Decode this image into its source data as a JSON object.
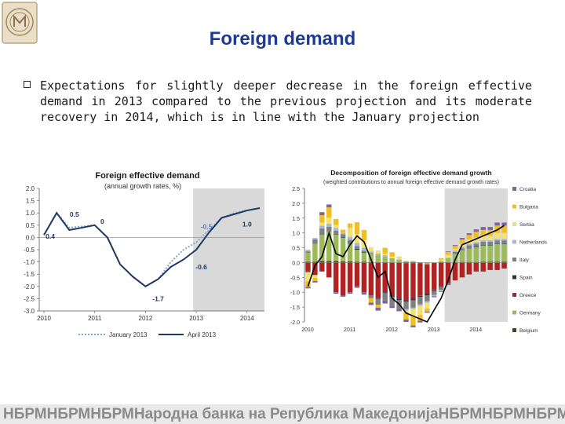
{
  "slide": {
    "title": "Foreign demand",
    "bullet": "Expectations for slightly deeper decrease in the foreign effective demand in 2013 compared to the previous projection and its moderate recovery in 2014, which is in line with the January projection",
    "footer": "НБРМНБРМНБРМНародна банка на Република МакедонијаНБРМНБРМНБРМ"
  },
  "colors": {
    "title": "#1f3a93",
    "projection_shade": "#d9d9d9",
    "january_line": "#7fa7d6",
    "april_line": "#1f3864",
    "line_total": "#000000"
  },
  "chart_data": [
    {
      "type": "line",
      "title": "Foreign effective demand",
      "subtitle": "(annual growth rates, %)",
      "x_tick_labels": [
        "2010",
        "2011",
        "2012",
        "2013",
        "2014"
      ],
      "ylim": [
        -3.0,
        2.0
      ],
      "y_ticks": [
        "2.0",
        "1.5",
        "1.0",
        "0.5",
        "0.0",
        "-0.5",
        "-1.0",
        "-1.5",
        "-2.0",
        "-2.5",
        "-3.0"
      ],
      "projection_start_index": 12,
      "series": [
        {
          "name": "January 2013",
          "style": "dotted",
          "values": [
            0.1,
            1.0,
            0.4,
            0.45,
            0.5,
            0.0,
            -1.1,
            -1.6,
            -2.0,
            -1.7,
            -1.0,
            -0.5,
            -0.2,
            0.3,
            0.8,
            1.0,
            1.1,
            1.2
          ]
        },
        {
          "name": "April 2013",
          "style": "solid",
          "values": [
            0.1,
            1.0,
            0.3,
            0.4,
            0.5,
            0.0,
            -1.1,
            -1.6,
            -2.0,
            -1.7,
            -1.2,
            -0.9,
            -0.5,
            0.2,
            0.8,
            0.95,
            1.1,
            1.2
          ]
        }
      ],
      "annotations": [
        "0.4",
        "0.5",
        "0",
        "-0.5",
        "1.0",
        "-0.6",
        "-1.7"
      ],
      "grid": false,
      "legend": "bottom"
    },
    {
      "type": "bar",
      "stacked": true,
      "title": "Decomposition of foreign effective demand growth",
      "subtitle": "(weighted contributions to annual foreign effective demand growth rates)",
      "x_tick_labels": [
        "2010",
        "2011",
        "2012",
        "2013",
        "2014"
      ],
      "ylim": [
        -2.0,
        2.5
      ],
      "y_ticks": [
        "2.5",
        "2.0",
        "1.5",
        "1.0",
        "0.5",
        "0.0",
        "-0.5",
        "-1.0",
        "-1.5",
        "-2.0"
      ],
      "projection_start_index": 20,
      "series_order": [
        "Belgium",
        "Germany",
        "Greece",
        "Spain",
        "Italy",
        "Netherlands",
        "Serbia",
        "Bulgaria",
        "Croatia"
      ],
      "series": [
        {
          "name": "Croatia",
          "color": "#8064a2",
          "values": [
            -0.05,
            -0.05,
            0.1,
            0.1,
            -0.05,
            -0.05,
            -0.05,
            -0.05,
            -0.08,
            -0.08,
            -0.1,
            -0.1,
            -0.08,
            -0.08,
            -0.08,
            -0.06,
            -0.06,
            -0.04,
            -0.03,
            -0.02,
            0.02,
            0.03,
            0.05,
            0.06,
            0.08,
            0.1,
            0.1,
            0.1,
            0.1
          ]
        },
        {
          "name": "Bulgaria",
          "color": "#f0c020",
          "values": [
            -0.2,
            -0.1,
            0.25,
            0.35,
            0.2,
            0.1,
            0.15,
            0.4,
            0.35,
            -0.15,
            -0.1,
            0.2,
            0.15,
            0.0,
            -0.25,
            -0.3,
            -0.2,
            -0.1,
            0.0,
            0.05,
            0.1,
            0.1,
            0.15,
            0.15,
            0.2,
            0.2,
            0.2,
            0.25,
            0.25
          ]
        },
        {
          "name": "Serbia",
          "color": "#f5e070",
          "values": [
            -0.3,
            -0.1,
            0.1,
            0.2,
            0.1,
            0.0,
            0.3,
            0.3,
            0.25,
            0.15,
            0.1,
            0.05,
            0.05,
            0.1,
            -0.05,
            -0.25,
            -0.3,
            -0.2,
            0.0,
            0.05,
            0.1,
            0.05,
            0.1,
            0.15,
            0.15,
            0.15,
            0.15,
            0.2,
            0.2
          ]
        },
        {
          "name": "Netherlands",
          "color": "#a5b8d6",
          "values": [
            0.05,
            0.05,
            0.1,
            0.1,
            0.1,
            0.05,
            0.1,
            0.1,
            0.1,
            0.05,
            0.05,
            0.05,
            0.0,
            0.0,
            -0.05,
            -0.05,
            -0.05,
            -0.05,
            -0.05,
            -0.05,
            0.0,
            0.05,
            0.05,
            0.05,
            0.05,
            0.05,
            0.05,
            0.05,
            0.05
          ]
        },
        {
          "name": "Italy",
          "color": "#7f7f7f",
          "values": [
            0.05,
            0.15,
            0.2,
            0.15,
            0.1,
            0.1,
            0.1,
            0.1,
            0.05,
            -0.1,
            -0.2,
            -0.25,
            -0.3,
            -0.3,
            -0.25,
            -0.25,
            -0.25,
            -0.2,
            -0.15,
            -0.1,
            -0.05,
            0.05,
            0.05,
            0.1,
            0.1,
            0.1,
            0.1,
            0.1,
            0.1
          ]
        },
        {
          "name": "Spain",
          "color": "#1f3864",
          "values": [
            -0.02,
            -0.02,
            0.0,
            0.01,
            0.02,
            0.02,
            0.03,
            0.03,
            0.02,
            0.0,
            -0.02,
            -0.03,
            -0.04,
            -0.05,
            -0.05,
            -0.05,
            -0.04,
            -0.04,
            -0.03,
            -0.02,
            -0.01,
            0.0,
            0.01,
            0.01,
            0.02,
            0.02,
            0.02,
            0.02,
            0.02
          ]
        },
        {
          "name": "Greece",
          "color": "#b22222",
          "values": [
            -0.3,
            -0.4,
            -0.3,
            -0.5,
            -1.0,
            -1.1,
            -1.0,
            -0.8,
            -1.0,
            -1.1,
            -1.2,
            -1.0,
            -1.1,
            -1.2,
            -1.25,
            -1.2,
            -1.1,
            -1.0,
            -0.9,
            -0.8,
            -0.7,
            -0.6,
            -0.5,
            -0.4,
            -0.3,
            -0.3,
            -0.25,
            -0.25,
            -0.2
          ]
        },
        {
          "name": "Germany",
          "color": "#9bbb59",
          "values": [
            0.3,
            0.6,
            0.9,
            1.0,
            0.9,
            0.8,
            0.6,
            0.4,
            0.3,
            0.3,
            0.25,
            0.2,
            0.15,
            0.1,
            0.05,
            0.05,
            0.0,
            -0.05,
            0.0,
            0.05,
            0.15,
            0.3,
            0.4,
            0.45,
            0.5,
            0.55,
            0.55,
            0.6,
            0.6
          ]
        },
        {
          "name": "Belgium",
          "color": "#4d3b2a",
          "values": [
            0.03,
            0.03,
            0.05,
            0.05,
            0.05,
            0.04,
            0.04,
            0.03,
            0.03,
            0.02,
            0.01,
            0.0,
            -0.01,
            -0.01,
            -0.02,
            -0.02,
            -0.02,
            -0.01,
            -0.01,
            0.0,
            0.01,
            0.01,
            0.02,
            0.02,
            0.02,
            0.03,
            0.03,
            0.03,
            0.03
          ]
        }
      ],
      "total_line": [
        -0.8,
        -0.1,
        0.2,
        1.0,
        0.3,
        0.2,
        0.6,
        0.9,
        0.7,
        0.1,
        -0.5,
        -0.3,
        -1.2,
        -1.4,
        -1.7,
        -1.8,
        -1.9,
        -2.0,
        -1.6,
        -1.2,
        -0.6,
        0.1,
        0.6,
        0.7,
        0.8,
        0.9,
        1.0,
        1.1,
        1.25
      ],
      "grid": false,
      "legend": "right"
    }
  ]
}
